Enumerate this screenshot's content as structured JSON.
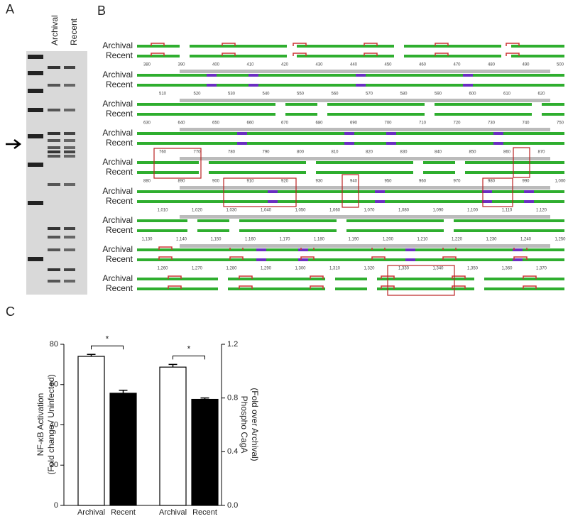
{
  "panel_a": {
    "label": "A",
    "lanes": [
      "Archival",
      "Recent"
    ]
  },
  "panel_b": {
    "label": "B",
    "rows": [
      "Archival",
      "Recent"
    ],
    "rulers": [
      [
        "380",
        "390",
        "400",
        "410",
        "420",
        "430",
        "440",
        "450",
        "460",
        "470",
        "480",
        "490",
        "500"
      ],
      [
        "510",
        "520",
        "530",
        "540",
        "550",
        "560",
        "570",
        "580",
        "590",
        "600",
        "610",
        "620"
      ],
      [
        "630",
        "640",
        "650",
        "660",
        "670",
        "680",
        "690",
        "700",
        "710",
        "720",
        "730",
        "740",
        "750"
      ],
      [
        "760",
        "770",
        "780",
        "790",
        "800",
        "810",
        "820",
        "830",
        "840",
        "850",
        "860",
        "870"
      ],
      [
        "880",
        "890",
        "900",
        "910",
        "920",
        "930",
        "940",
        "950",
        "960",
        "970",
        "980",
        "990",
        "1,000"
      ],
      [
        "1,010",
        "1,020",
        "1,030",
        "1,040",
        "1,050",
        "1,060",
        "1,070",
        "1,080",
        "1,090",
        "1,100",
        "1,110",
        "1,120"
      ],
      [
        "1,130",
        "1,140",
        "1,150",
        "1,160",
        "1,170",
        "1,180",
        "1,190",
        "1,200",
        "1,210",
        "1,220",
        "1,230",
        "1,240",
        "1,250"
      ],
      [
        "1,260",
        "1,270",
        "1,280",
        "1,290",
        "1,300",
        "1,310",
        "1,320",
        "1,330",
        "1,340",
        "1,350",
        "1,360",
        "1,370"
      ]
    ]
  },
  "panel_c": {
    "label": "C"
  },
  "chart_data": {
    "type": "bar",
    "ylabel": [
      "NF-κB Activation",
      "(Fold change / Uninfected)"
    ],
    "y2label": [
      "Phospho CagA",
      "(Fold over Archival)"
    ],
    "ylim": [
      0,
      80
    ],
    "yticks": [
      0,
      20,
      40,
      60,
      80
    ],
    "y2lim": [
      0,
      1.2
    ],
    "y2ticks": [
      {
        "value": 0,
        "label": "0.0"
      },
      0.4,
      0.8,
      1.2
    ],
    "groups": [
      {
        "axis": "y",
        "categories": [
          "Archival",
          "Recent"
        ],
        "values": [
          74,
          55.7
        ],
        "errors": [
          1,
          1.5
        ],
        "colors": [
          "#ffffff",
          "#000000"
        ],
        "significance": "*"
      },
      {
        "axis": "y2",
        "categories": [
          "Archival",
          "Recent"
        ],
        "values": [
          1.03,
          0.79
        ],
        "errors": [
          0.02,
          0.01
        ],
        "colors": [
          "#ffffff",
          "#000000"
        ],
        "significance": "*"
      }
    ]
  }
}
